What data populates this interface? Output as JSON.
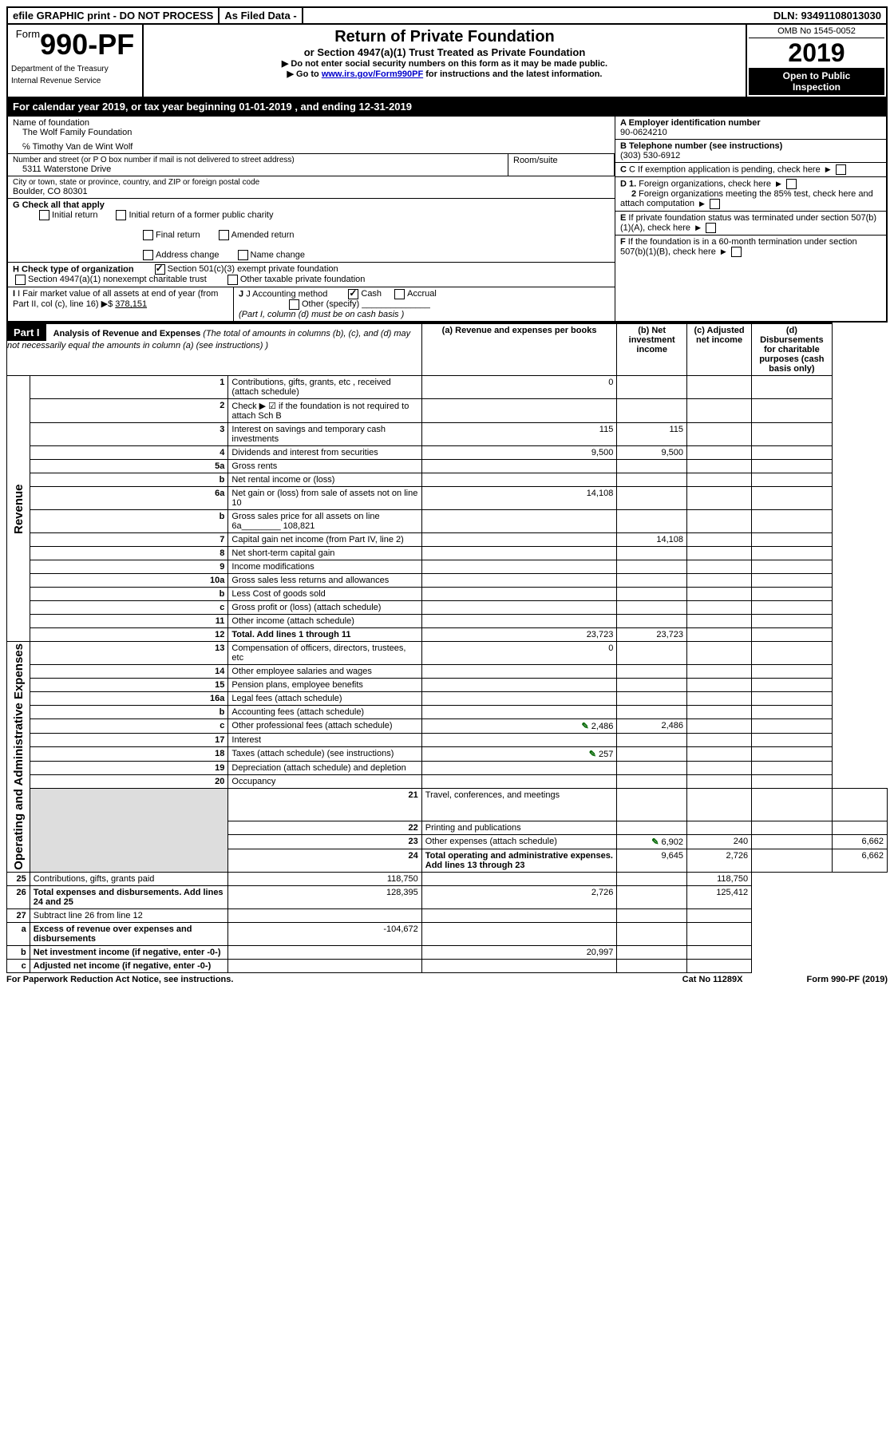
{
  "top": {
    "efile": "efile GRAPHIC print - DO NOT PROCESS",
    "asfiled": "As Filed Data -",
    "dln": "DLN: 93491108013030"
  },
  "header": {
    "form_prefix": "Form",
    "form_number": "990-PF",
    "dept1": "Department of the Treasury",
    "dept2": "Internal Revenue Service",
    "title": "Return of Private Foundation",
    "subtitle": "or Section 4947(a)(1) Trust Treated as Private Foundation",
    "note1": "▶ Do not enter social security numbers on this form as it may be made public.",
    "note2_pre": "▶ Go to ",
    "note2_link": "www.irs.gov/Form990PF",
    "note2_post": " for instructions and the latest information.",
    "omb": "OMB No 1545-0052",
    "year": "2019",
    "open1": "Open to Public",
    "open2": "Inspection"
  },
  "calyear": "For calendar year 2019, or tax year beginning 01-01-2019                     , and ending 12-31-2019",
  "info": {
    "name_label": "Name of foundation",
    "name": "The Wolf Family Foundation",
    "co": "℅ Timothy Van de Wint Wolf",
    "addr_label": "Number and street (or P O  box number if mail is not delivered to street address)",
    "addr": "5311 Waterstone Drive",
    "room_label": "Room/suite",
    "city_label": "City or town, state or province, country, and ZIP or foreign postal code",
    "city": "Boulder, CO  80301",
    "A_label": "A Employer identification number",
    "A_val": "90-0624210",
    "B_label": "B Telephone number (see instructions)",
    "B_val": "(303) 530-6912",
    "C_label": "C If exemption application is pending, check here",
    "D1": "D 1. Foreign organizations, check here",
    "D2": "2  Foreign organizations meeting the 85% test, check here and attach computation",
    "E": "E  If private foundation status was terminated under section 507(b)(1)(A), check here",
    "F": "F  If the foundation is in a 60-month termination under section 507(b)(1)(B), check here"
  },
  "G": {
    "label": "G Check all that apply",
    "opts": [
      "Initial return",
      "Initial return of a former public charity",
      "Final return",
      "Amended return",
      "Address change",
      "Name change"
    ]
  },
  "H": {
    "label": "H Check type of organization",
    "opt1": "Section 501(c)(3) exempt private foundation",
    "opt2": "Section 4947(a)(1) nonexempt charitable trust",
    "opt3": "Other taxable private foundation"
  },
  "I": {
    "label": "I Fair market value of all assets at end of year (from Part II, col  (c), line 16)",
    "val": "378,151"
  },
  "J": {
    "label": "J Accounting method",
    "cash": "Cash",
    "accrual": "Accrual",
    "other": "Other (specify)",
    "note": "(Part I, column (d) must be on cash basis )"
  },
  "part1": {
    "label": "Part I",
    "title": "Analysis of Revenue and Expenses",
    "paren": "(The total of amounts in columns (b), (c), and (d) may not necessarily equal the amounts in column (a) (see instructions) )",
    "col_a": "(a)   Revenue and expenses per books",
    "col_b": "(b)  Net investment income",
    "col_c": "(c)  Adjusted net income",
    "col_d": "(d)  Disbursements for charitable purposes (cash basis only)"
  },
  "sections": {
    "revenue": "Revenue",
    "opex": "Operating and Administrative Expenses"
  },
  "rows": [
    {
      "n": "1",
      "d": "Contributions, gifts, grants, etc , received (attach schedule)",
      "a": "0"
    },
    {
      "n": "2",
      "d": "Check ▶ ☑ if the foundation is not required to attach Sch B"
    },
    {
      "n": "3",
      "d": "Interest on savings and temporary cash investments",
      "a": "115",
      "b": "115"
    },
    {
      "n": "4",
      "d": "Dividends and interest from securities",
      "a": "9,500",
      "b": "9,500"
    },
    {
      "n": "5a",
      "d": "Gross rents"
    },
    {
      "n": "b",
      "d": "Net rental income or (loss)"
    },
    {
      "n": "6a",
      "d": "Net gain or (loss) from sale of assets not on line 10",
      "a": "14,108"
    },
    {
      "n": "b",
      "d": "Gross sales price for all assets on line 6a________ 108,821"
    },
    {
      "n": "7",
      "d": "Capital gain net income (from Part IV, line 2)",
      "b": "14,108"
    },
    {
      "n": "8",
      "d": "Net short-term capital gain"
    },
    {
      "n": "9",
      "d": "Income modifications"
    },
    {
      "n": "10a",
      "d": "Gross sales less returns and allowances"
    },
    {
      "n": "b",
      "d": "Less  Cost of goods sold"
    },
    {
      "n": "c",
      "d": "Gross profit or (loss) (attach schedule)"
    },
    {
      "n": "11",
      "d": "Other income (attach schedule)"
    },
    {
      "n": "12",
      "d": "Total. Add lines 1 through 11",
      "a": "23,723",
      "b": "23,723",
      "bold": true
    },
    {
      "n": "13",
      "d": "Compensation of officers, directors, trustees, etc",
      "a": "0"
    },
    {
      "n": "14",
      "d": "Other employee salaries and wages"
    },
    {
      "n": "15",
      "d": "Pension plans, employee benefits"
    },
    {
      "n": "16a",
      "d": "Legal fees (attach schedule)"
    },
    {
      "n": "b",
      "d": "Accounting fees (attach schedule)"
    },
    {
      "n": "c",
      "d": "Other professional fees (attach schedule)",
      "a": "2,486",
      "b": "2,486",
      "icon": true
    },
    {
      "n": "17",
      "d": "Interest"
    },
    {
      "n": "18",
      "d": "Taxes (attach schedule) (see instructions)",
      "a": "257",
      "icon": true
    },
    {
      "n": "19",
      "d": "Depreciation (attach schedule) and depletion"
    },
    {
      "n": "20",
      "d": "Occupancy"
    },
    {
      "n": "21",
      "d": "Travel, conferences, and meetings"
    },
    {
      "n": "22",
      "d": "Printing and publications"
    },
    {
      "n": "23",
      "d": "Other expenses (attach schedule)",
      "a": "6,902",
      "b": "240",
      "dd": "6,662",
      "icon": true
    },
    {
      "n": "24",
      "d": "Total operating and administrative expenses. Add lines 13 through 23",
      "a": "9,645",
      "b": "2,726",
      "dd": "6,662",
      "bold": true
    },
    {
      "n": "25",
      "d": "Contributions, gifts, grants paid",
      "a": "118,750",
      "dd": "118,750"
    },
    {
      "n": "26",
      "d": "Total expenses and disbursements. Add lines 24 and 25",
      "a": "128,395",
      "b": "2,726",
      "dd": "125,412",
      "bold": true
    },
    {
      "n": "27",
      "d": "Subtract line 26 from line 12"
    },
    {
      "n": "a",
      "d": "Excess of revenue over expenses and disbursements",
      "a": "-104,672",
      "bold": true
    },
    {
      "n": "b",
      "d": "Net investment income (if negative, enter -0-)",
      "b": "20,997",
      "bold": true
    },
    {
      "n": "c",
      "d": "Adjusted net income (if negative, enter -0-)",
      "bold": true
    }
  ],
  "footer": {
    "left": "For Paperwork Reduction Act Notice, see instructions.",
    "mid": "Cat  No  11289X",
    "right": "Form 990-PF (2019)"
  }
}
